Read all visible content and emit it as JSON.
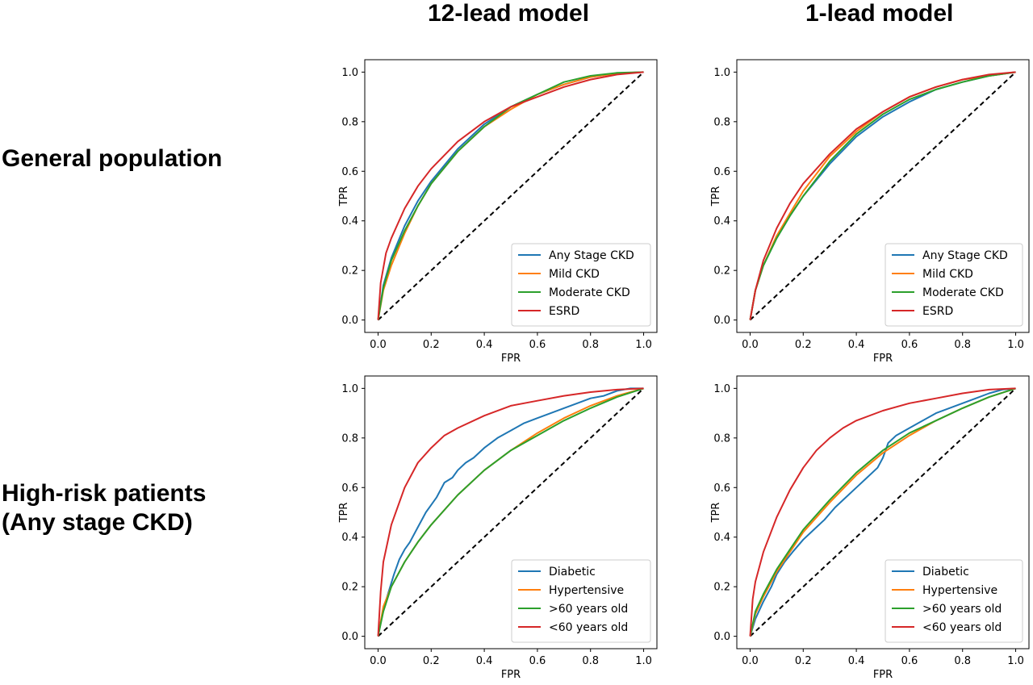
{
  "column_titles": [
    "12-lead model",
    "1-lead model"
  ],
  "row_titles": [
    [
      "General population"
    ],
    [
      "High-risk patients",
      "(Any stage CKD)"
    ]
  ],
  "colors": {
    "blue": "#1f77b4",
    "orange": "#ff7f0e",
    "green": "#2ca02c",
    "red": "#d62728",
    "diagonal": "#000000"
  },
  "chart_data": [
    {
      "type": "line",
      "panel": "General population / 12-lead model",
      "xlabel": "FPR",
      "ylabel": "TPR",
      "xlim": [
        0,
        1
      ],
      "ylim": [
        0,
        1
      ],
      "xticks": [
        "0.0",
        "0.2",
        "0.4",
        "0.6",
        "0.8",
        "1.0"
      ],
      "yticks": [
        "0.0",
        "0.2",
        "0.4",
        "0.6",
        "0.8",
        "1.0"
      ],
      "legend_position": "lower right",
      "diagonal": true,
      "series": [
        {
          "name": "Any Stage CKD",
          "color": "blue",
          "x": [
            0,
            0.02,
            0.05,
            0.1,
            0.15,
            0.2,
            0.3,
            0.4,
            0.5,
            0.6,
            0.7,
            0.8,
            0.9,
            1.0
          ],
          "y": [
            0,
            0.14,
            0.25,
            0.38,
            0.48,
            0.56,
            0.69,
            0.79,
            0.86,
            0.91,
            0.95,
            0.98,
            0.995,
            1.0
          ]
        },
        {
          "name": "Mild CKD",
          "color": "orange",
          "x": [
            0,
            0.02,
            0.05,
            0.1,
            0.15,
            0.2,
            0.3,
            0.4,
            0.5,
            0.6,
            0.7,
            0.8,
            0.9,
            1.0
          ],
          "y": [
            0,
            0.12,
            0.22,
            0.35,
            0.46,
            0.55,
            0.68,
            0.78,
            0.85,
            0.91,
            0.95,
            0.98,
            0.995,
            1.0
          ]
        },
        {
          "name": "Moderate CKD",
          "color": "green",
          "x": [
            0,
            0.02,
            0.05,
            0.1,
            0.15,
            0.2,
            0.3,
            0.4,
            0.5,
            0.6,
            0.7,
            0.8,
            0.9,
            1.0
          ],
          "y": [
            0,
            0.13,
            0.24,
            0.36,
            0.46,
            0.55,
            0.68,
            0.78,
            0.86,
            0.91,
            0.96,
            0.985,
            0.997,
            1.0
          ]
        },
        {
          "name": "ESRD",
          "color": "red",
          "x": [
            0,
            0.01,
            0.03,
            0.05,
            0.1,
            0.15,
            0.2,
            0.3,
            0.4,
            0.5,
            0.6,
            0.7,
            0.8,
            0.9,
            1.0
          ],
          "y": [
            0,
            0.15,
            0.27,
            0.33,
            0.45,
            0.54,
            0.61,
            0.72,
            0.8,
            0.86,
            0.9,
            0.94,
            0.97,
            0.99,
            1.0
          ]
        }
      ]
    },
    {
      "type": "line",
      "panel": "General population / 1-lead model",
      "xlabel": "FPR",
      "ylabel": "TPR",
      "xlim": [
        0,
        1
      ],
      "ylim": [
        0,
        1
      ],
      "xticks": [
        "0.0",
        "0.2",
        "0.4",
        "0.6",
        "0.8",
        "1.0"
      ],
      "yticks": [
        "0.0",
        "0.2",
        "0.4",
        "0.6",
        "0.8",
        "1.0"
      ],
      "legend_position": "lower right",
      "diagonal": true,
      "series": [
        {
          "name": "Any Stage CKD",
          "color": "blue",
          "x": [
            0,
            0.02,
            0.05,
            0.1,
            0.15,
            0.2,
            0.3,
            0.4,
            0.5,
            0.6,
            0.7,
            0.8,
            0.9,
            1.0
          ],
          "y": [
            0,
            0.12,
            0.22,
            0.33,
            0.42,
            0.5,
            0.63,
            0.74,
            0.82,
            0.88,
            0.93,
            0.96,
            0.985,
            1.0
          ]
        },
        {
          "name": "Mild CKD",
          "color": "orange",
          "x": [
            0,
            0.02,
            0.05,
            0.1,
            0.15,
            0.2,
            0.3,
            0.4,
            0.5,
            0.6,
            0.7,
            0.8,
            0.9,
            1.0
          ],
          "y": [
            0,
            0.12,
            0.22,
            0.34,
            0.43,
            0.52,
            0.66,
            0.76,
            0.84,
            0.9,
            0.94,
            0.97,
            0.985,
            1.0
          ]
        },
        {
          "name": "Moderate CKD",
          "color": "green",
          "x": [
            0,
            0.02,
            0.05,
            0.1,
            0.15,
            0.2,
            0.3,
            0.4,
            0.5,
            0.6,
            0.7,
            0.8,
            0.9,
            1.0
          ],
          "y": [
            0,
            0.12,
            0.22,
            0.33,
            0.42,
            0.5,
            0.64,
            0.75,
            0.83,
            0.89,
            0.93,
            0.96,
            0.985,
            1.0
          ]
        },
        {
          "name": "ESRD",
          "color": "red",
          "x": [
            0,
            0.02,
            0.05,
            0.1,
            0.15,
            0.2,
            0.3,
            0.4,
            0.5,
            0.6,
            0.7,
            0.8,
            0.9,
            1.0
          ],
          "y": [
            0,
            0.12,
            0.24,
            0.37,
            0.47,
            0.55,
            0.67,
            0.77,
            0.84,
            0.9,
            0.94,
            0.97,
            0.99,
            1.0
          ]
        }
      ]
    },
    {
      "type": "line",
      "panel": "High-risk patients (Any stage CKD) / 12-lead model",
      "xlabel": "FPR",
      "ylabel": "TPR",
      "xlim": [
        0,
        1
      ],
      "ylim": [
        0,
        1
      ],
      "xticks": [
        "0.0",
        "0.2",
        "0.4",
        "0.6",
        "0.8",
        "1.0"
      ],
      "yticks": [
        "0.0",
        "0.2",
        "0.4",
        "0.6",
        "0.8",
        "1.0"
      ],
      "legend_position": "lower right",
      "diagonal": true,
      "series": [
        {
          "name": "Diabetic",
          "color": "blue",
          "x": [
            0,
            0.02,
            0.04,
            0.06,
            0.08,
            0.1,
            0.12,
            0.15,
            0.18,
            0.2,
            0.22,
            0.25,
            0.28,
            0.3,
            0.33,
            0.36,
            0.4,
            0.45,
            0.5,
            0.55,
            0.6,
            0.65,
            0.7,
            0.75,
            0.8,
            0.85,
            0.9,
            0.95,
            1.0
          ],
          "y": [
            0,
            0.11,
            0.18,
            0.25,
            0.31,
            0.35,
            0.38,
            0.44,
            0.5,
            0.53,
            0.56,
            0.62,
            0.64,
            0.67,
            0.7,
            0.72,
            0.76,
            0.8,
            0.83,
            0.86,
            0.88,
            0.9,
            0.92,
            0.94,
            0.96,
            0.97,
            0.99,
            1.0,
            1.0
          ]
        },
        {
          "name": "Hypertensive",
          "color": "orange",
          "x": [
            0,
            0.02,
            0.05,
            0.1,
            0.15,
            0.2,
            0.3,
            0.4,
            0.5,
            0.6,
            0.7,
            0.8,
            0.9,
            1.0
          ],
          "y": [
            0,
            0.12,
            0.2,
            0.3,
            0.38,
            0.45,
            0.57,
            0.67,
            0.75,
            0.82,
            0.88,
            0.93,
            0.97,
            1.0
          ]
        },
        {
          "name": ">60 years old",
          "color": "green",
          "x": [
            0,
            0.02,
            0.05,
            0.1,
            0.15,
            0.2,
            0.3,
            0.4,
            0.5,
            0.6,
            0.7,
            0.8,
            0.9,
            1.0
          ],
          "y": [
            0,
            0.1,
            0.2,
            0.3,
            0.38,
            0.45,
            0.57,
            0.67,
            0.75,
            0.81,
            0.87,
            0.92,
            0.965,
            1.0
          ]
        },
        {
          "name": "<60 years old",
          "color": "red",
          "x": [
            0,
            0.01,
            0.02,
            0.05,
            0.1,
            0.15,
            0.2,
            0.25,
            0.3,
            0.4,
            0.5,
            0.6,
            0.7,
            0.8,
            0.9,
            1.0
          ],
          "y": [
            0,
            0.18,
            0.3,
            0.45,
            0.6,
            0.7,
            0.76,
            0.81,
            0.84,
            0.89,
            0.93,
            0.95,
            0.97,
            0.985,
            0.995,
            1.0
          ]
        }
      ]
    },
    {
      "type": "line",
      "panel": "High-risk patients (Any stage CKD) / 1-lead model",
      "xlabel": "FPR",
      "ylabel": "TPR",
      "xlim": [
        0,
        1
      ],
      "ylim": [
        0,
        1
      ],
      "xticks": [
        "0.0",
        "0.2",
        "0.4",
        "0.6",
        "0.8",
        "1.0"
      ],
      "yticks": [
        "0.0",
        "0.2",
        "0.4",
        "0.6",
        "0.8",
        "1.0"
      ],
      "legend_position": "lower right",
      "diagonal": true,
      "series": [
        {
          "name": "Diabetic",
          "color": "blue",
          "x": [
            0,
            0.02,
            0.05,
            0.08,
            0.1,
            0.13,
            0.16,
            0.2,
            0.24,
            0.28,
            0.32,
            0.36,
            0.4,
            0.44,
            0.48,
            0.5,
            0.52,
            0.55,
            0.6,
            0.65,
            0.7,
            0.75,
            0.8,
            0.85,
            0.9,
            0.95,
            1.0
          ],
          "y": [
            0,
            0.07,
            0.14,
            0.2,
            0.25,
            0.3,
            0.34,
            0.39,
            0.43,
            0.47,
            0.52,
            0.56,
            0.6,
            0.64,
            0.68,
            0.72,
            0.78,
            0.81,
            0.84,
            0.87,
            0.9,
            0.92,
            0.94,
            0.96,
            0.98,
            0.995,
            1.0
          ]
        },
        {
          "name": "Hypertensive",
          "color": "orange",
          "x": [
            0,
            0.02,
            0.05,
            0.1,
            0.15,
            0.2,
            0.3,
            0.4,
            0.5,
            0.6,
            0.7,
            0.8,
            0.9,
            1.0
          ],
          "y": [
            0,
            0.09,
            0.16,
            0.26,
            0.34,
            0.42,
            0.54,
            0.65,
            0.74,
            0.81,
            0.87,
            0.92,
            0.965,
            1.0
          ]
        },
        {
          "name": ">60 years old",
          "color": "green",
          "x": [
            0,
            0.02,
            0.05,
            0.1,
            0.15,
            0.2,
            0.3,
            0.4,
            0.5,
            0.6,
            0.7,
            0.8,
            0.9,
            1.0
          ],
          "y": [
            0,
            0.1,
            0.17,
            0.27,
            0.35,
            0.43,
            0.55,
            0.66,
            0.75,
            0.82,
            0.87,
            0.92,
            0.965,
            1.0
          ]
        },
        {
          "name": "<60 years old",
          "color": "red",
          "x": [
            0,
            0.01,
            0.02,
            0.05,
            0.1,
            0.15,
            0.2,
            0.25,
            0.3,
            0.35,
            0.4,
            0.5,
            0.6,
            0.7,
            0.8,
            0.9,
            1.0
          ],
          "y": [
            0,
            0.15,
            0.22,
            0.34,
            0.48,
            0.59,
            0.68,
            0.75,
            0.8,
            0.84,
            0.87,
            0.91,
            0.94,
            0.96,
            0.98,
            0.995,
            1.0
          ]
        }
      ]
    }
  ]
}
